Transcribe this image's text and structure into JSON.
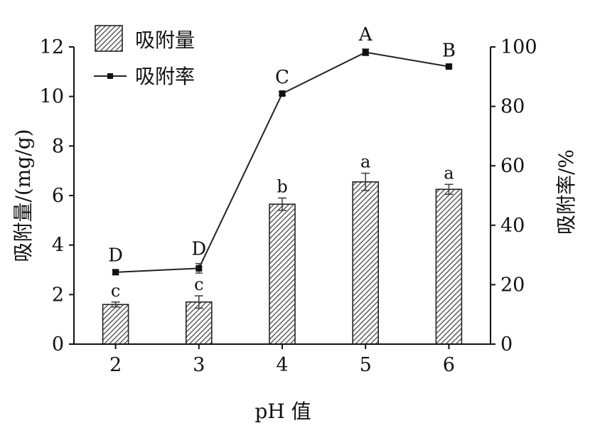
{
  "chart_data": {
    "type": "bar",
    "xlabel": "pH 值",
    "ylabel_left": "吸附量/(mg/g)",
    "ylabel_right": "吸附率/%",
    "categories": [
      "2",
      "3",
      "4",
      "5",
      "6"
    ],
    "ylim_left": [
      0,
      12
    ],
    "ylim_right": [
      0,
      100
    ],
    "yticks_left": [
      "0",
      "2",
      "4",
      "6",
      "8",
      "10",
      "12"
    ],
    "yticks_right": [
      "0",
      "20",
      "40",
      "60",
      "80",
      "100"
    ],
    "grid": false,
    "legend_position": "top-left",
    "series": [
      {
        "name": "吸附量",
        "type": "bar",
        "axis": "left",
        "values": [
          1.6,
          1.7,
          5.65,
          6.55,
          6.25
        ],
        "errors": [
          0.1,
          0.25,
          0.25,
          0.35,
          0.2
        ],
        "letters": [
          "c",
          "c",
          "b",
          "a",
          "a"
        ]
      },
      {
        "name": "吸附率",
        "type": "line",
        "axis": "right",
        "values": [
          24.2,
          25.5,
          84.3,
          98.2,
          93.4
        ],
        "errors": [
          0.8,
          1.6,
          0.6,
          1.1,
          0.5
        ],
        "letters": [
          "D",
          "D",
          "C",
          "A",
          "B"
        ]
      }
    ]
  }
}
